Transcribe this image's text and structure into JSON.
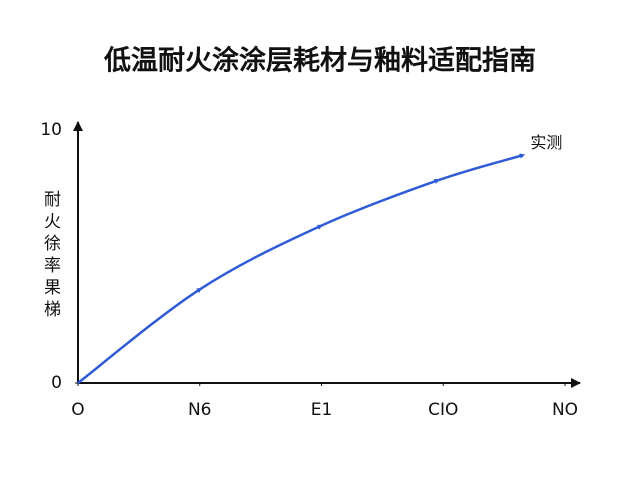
{
  "chart_data": {
    "type": "line",
    "title": "低温耐火涂涂层耗材与釉料适配指南",
    "y_label": "耐火徐率果梯",
    "x": [
      0,
      1,
      1.99,
      2.95,
      3.65
    ],
    "series": [
      {
        "name": "实测",
        "color": "#2f5bd6",
        "values": [
          0,
          3.7,
          6.2,
          8.0,
          9.0
        ]
      }
    ],
    "xlim": [
      0,
      4
    ],
    "xticks": [
      {
        "value": 0,
        "label": "O"
      },
      {
        "value": 1,
        "label": "N6"
      },
      {
        "value": 2,
        "label": "E1"
      },
      {
        "value": 3,
        "label": "CIO"
      },
      {
        "value": 4,
        "label": "NO"
      }
    ],
    "ylim": [
      0,
      10
    ],
    "yticks": [
      0,
      10
    ]
  }
}
